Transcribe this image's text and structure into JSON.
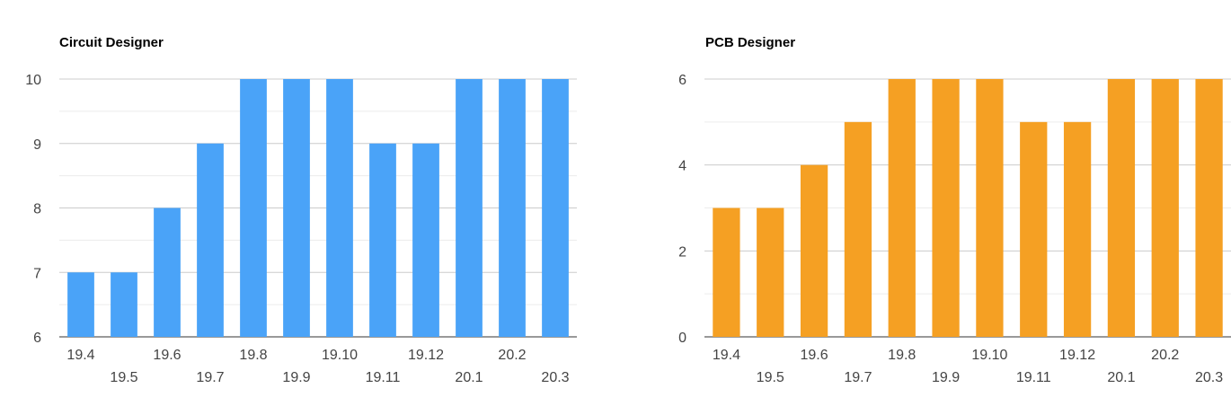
{
  "chart_data": [
    {
      "type": "bar",
      "title": "Circuit Designer",
      "categories": [
        "19.4",
        "19.5",
        "19.6",
        "19.7",
        "19.8",
        "19.9",
        "19.10",
        "19.11",
        "19.12",
        "20.1",
        "20.2",
        "20.3"
      ],
      "values": [
        7,
        7,
        8,
        9,
        10,
        10,
        10,
        9,
        9,
        10,
        10,
        10
      ],
      "ylim": [
        6,
        10
      ],
      "yticks": [
        6,
        7,
        8,
        9,
        10
      ],
      "color": "#4aa3f8",
      "grid": true,
      "legend": "none"
    },
    {
      "type": "bar",
      "title": "PCB Designer",
      "categories": [
        "19.4",
        "19.5",
        "19.6",
        "19.7",
        "19.8",
        "19.9",
        "19.10",
        "19.11",
        "19.12",
        "20.1",
        "20.2",
        "20.3"
      ],
      "values": [
        3,
        3,
        4,
        5,
        6,
        6,
        6,
        5,
        5,
        6,
        6,
        6
      ],
      "ylim": [
        0,
        6
      ],
      "yticks": [
        0,
        2,
        4,
        6
      ],
      "color": "#f5a023",
      "grid": true,
      "legend": "none"
    }
  ]
}
